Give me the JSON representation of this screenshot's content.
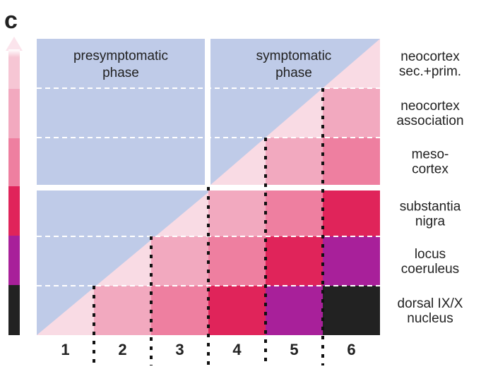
{
  "panel_letter": "c",
  "phases": [
    [
      "presymptomatic",
      "phase"
    ],
    [
      "symptomatic",
      "phase"
    ]
  ],
  "regions": [
    [
      "neocortex",
      "sec.+prim."
    ],
    [
      "neocortex",
      "association"
    ],
    [
      "meso-",
      "cortex"
    ],
    [
      "substantia",
      "nigra"
    ],
    [
      "locus",
      "coeruleus"
    ],
    [
      "dorsal IX/X",
      "nucleus"
    ]
  ],
  "stages": [
    "1",
    "2",
    "3",
    "4",
    "5",
    "6"
  ]
}
